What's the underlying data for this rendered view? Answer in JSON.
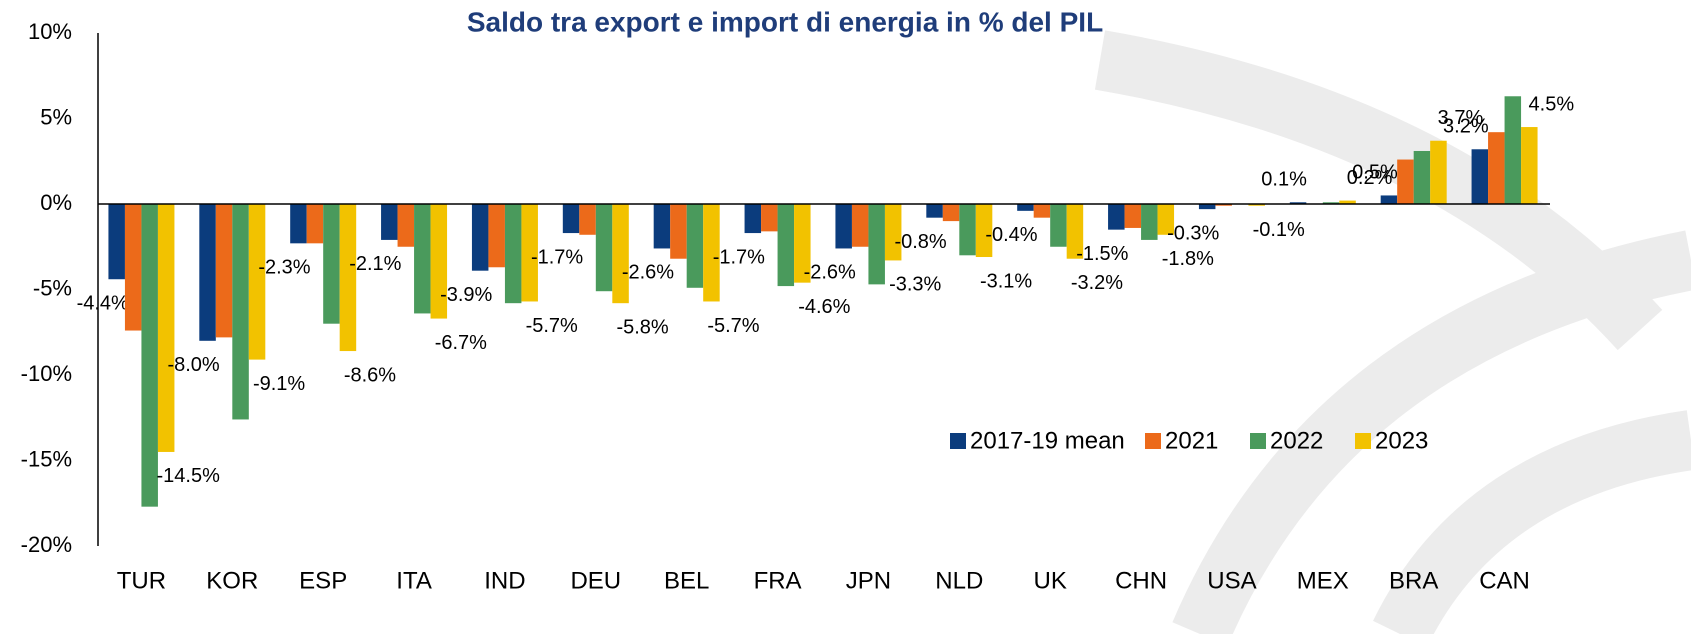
{
  "chart_data": {
    "type": "bar",
    "title": "Saldo tra export e import di energia in % del PIL",
    "categories": [
      "TUR",
      "KOR",
      "ESP",
      "ITA",
      "IND",
      "DEU",
      "BEL",
      "FRA",
      "JPN",
      "NLD",
      "UK",
      "CHN",
      "USA",
      "MEX",
      "BRA",
      "CAN"
    ],
    "series": [
      {
        "name": "2017-19 mean",
        "color": "#0b3c7d",
        "values": [
          -4.4,
          -8.0,
          -2.3,
          -2.1,
          -3.9,
          -1.7,
          -2.6,
          -1.7,
          -2.6,
          -0.8,
          -0.4,
          -1.5,
          -0.3,
          0.1,
          0.5,
          3.2
        ],
        "value_labels": [
          "-4.4%",
          "-8.0%",
          "-2.3%",
          "-2.1%",
          "-3.9%",
          "-1.7%",
          "-2.6%",
          "-1.7%",
          "-2.6%",
          "-0.8%",
          "-0.4%",
          "-1.5%",
          "-0.3%",
          "0.1%",
          "0.5%",
          "3.2%"
        ]
      },
      {
        "name": "2021",
        "color": "#ec6a1a",
        "values": [
          -7.4,
          -7.8,
          -2.3,
          -2.5,
          -3.7,
          -1.8,
          -3.2,
          -1.6,
          -2.5,
          -1.0,
          -0.8,
          -1.4,
          -0.1,
          0.0,
          2.6,
          4.2
        ]
      },
      {
        "name": "2022",
        "color": "#4a9a5c",
        "values": [
          -17.7,
          -12.6,
          -7.0,
          -6.4,
          -5.8,
          -5.1,
          -4.9,
          -4.8,
          -4.7,
          -3.0,
          -2.5,
          -2.1,
          0.0,
          0.1,
          3.1,
          6.3
        ]
      },
      {
        "name": "2023",
        "color": "#f2c200",
        "values": [
          -14.5,
          -9.1,
          -8.6,
          -6.7,
          -5.7,
          -5.8,
          -5.7,
          -4.6,
          -3.3,
          -3.1,
          -3.2,
          -1.8,
          -0.1,
          0.2,
          3.7,
          4.5
        ],
        "value_labels": [
          "-14.5%",
          "-9.1%",
          "-8.6%",
          "-6.7%",
          "-5.7%",
          "-5.8%",
          "-5.7%",
          "-4.6%",
          "-3.3%",
          "-3.1%",
          "-3.2%",
          "-1.8%",
          "-0.1%",
          "0.2%",
          "3.7%",
          "4.5%"
        ]
      }
    ],
    "ylim": [
      -20,
      10
    ],
    "yticks": [
      {
        "value": -20,
        "label": "-20%"
      },
      {
        "value": -15,
        "label": "-15%"
      },
      {
        "value": -10,
        "label": "-10%"
      },
      {
        "value": -5,
        "label": "-5%"
      },
      {
        "value": 0,
        "label": "0%"
      },
      {
        "value": 5,
        "label": "5%"
      },
      {
        "value": 10,
        "label": "10%"
      }
    ],
    "legend": "lower right"
  }
}
